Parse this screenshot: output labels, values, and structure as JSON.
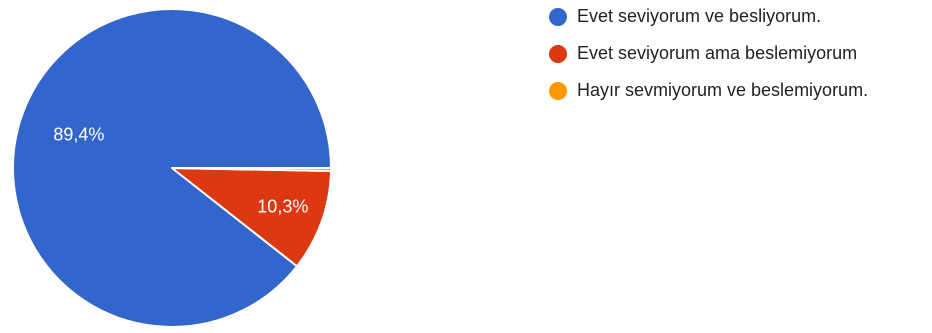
{
  "chart_data": {
    "type": "pie",
    "legend_position": "top-right",
    "slices": [
      {
        "label": "Evet seviyorum ve besliyorum.",
        "value": 89.4,
        "display": "89,4%",
        "color": "#3366cc"
      },
      {
        "label": "Evet seviyorum ama beslemiyorum",
        "value": 10.3,
        "display": "10,3%",
        "color": "#dc3912"
      },
      {
        "label": "Hayır sevmiyorum ve beslemiyorum.",
        "value": 0.3,
        "display": "",
        "color": "#ff9900"
      }
    ]
  }
}
